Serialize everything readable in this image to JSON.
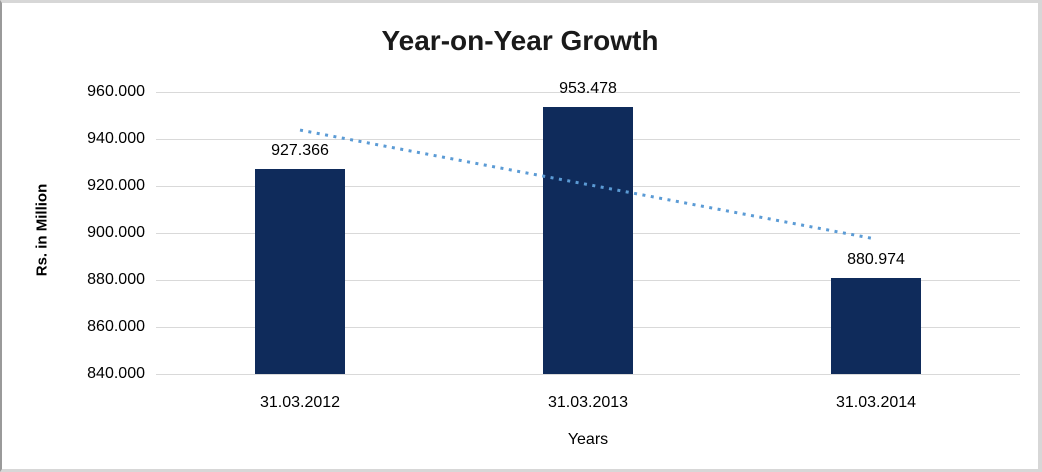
{
  "chart_data": {
    "type": "bar",
    "title": "Year-on-Year Growth",
    "xlabel": "Years",
    "ylabel": "Rs. in Million",
    "categories": [
      "31.03.2012",
      "31.03.2013",
      "31.03.2014"
    ],
    "values": [
      927.366,
      953.478,
      880.974
    ],
    "data_labels": [
      "927.366",
      "953.478",
      "880.974"
    ],
    "ylim": [
      840,
      960
    ],
    "ytick_step": 20,
    "ytick_labels": [
      "840.000",
      "860.000",
      "880.000",
      "900.000",
      "920.000",
      "940.000",
      "960.000"
    ],
    "grid": "horizontal-only",
    "legend": "none",
    "trendline": {
      "type": "linear",
      "style": "dotted"
    },
    "colors": {
      "bar": "#0f2b5b",
      "trendline": "#5b9bd5",
      "gridline": "#d9d9d9",
      "text": "#000000",
      "title_text": "#1a1a1a"
    }
  }
}
